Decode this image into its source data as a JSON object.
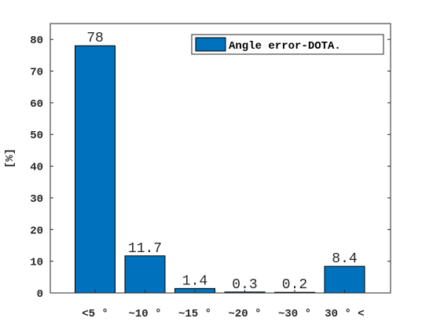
{
  "chart_data": {
    "type": "bar",
    "categories": [
      "<5 °",
      "~10 °",
      "~15 °",
      "~20 °",
      "~30 °",
      "30 ° <"
    ],
    "values": [
      78,
      11.7,
      1.4,
      0.3,
      0.2,
      8.4
    ],
    "data_labels": [
      "78",
      "11.7",
      "1.4",
      "0.3",
      "0.2",
      "8.4"
    ],
    "ylabel": "[%]",
    "ylim": [
      0,
      85
    ],
    "yticks": [
      0,
      10,
      20,
      30,
      40,
      50,
      60,
      70,
      80
    ],
    "legend": {
      "label": "Angle error-DOTA.",
      "placement": "top-right"
    },
    "grid": false,
    "bar_color": "#0072BD"
  }
}
